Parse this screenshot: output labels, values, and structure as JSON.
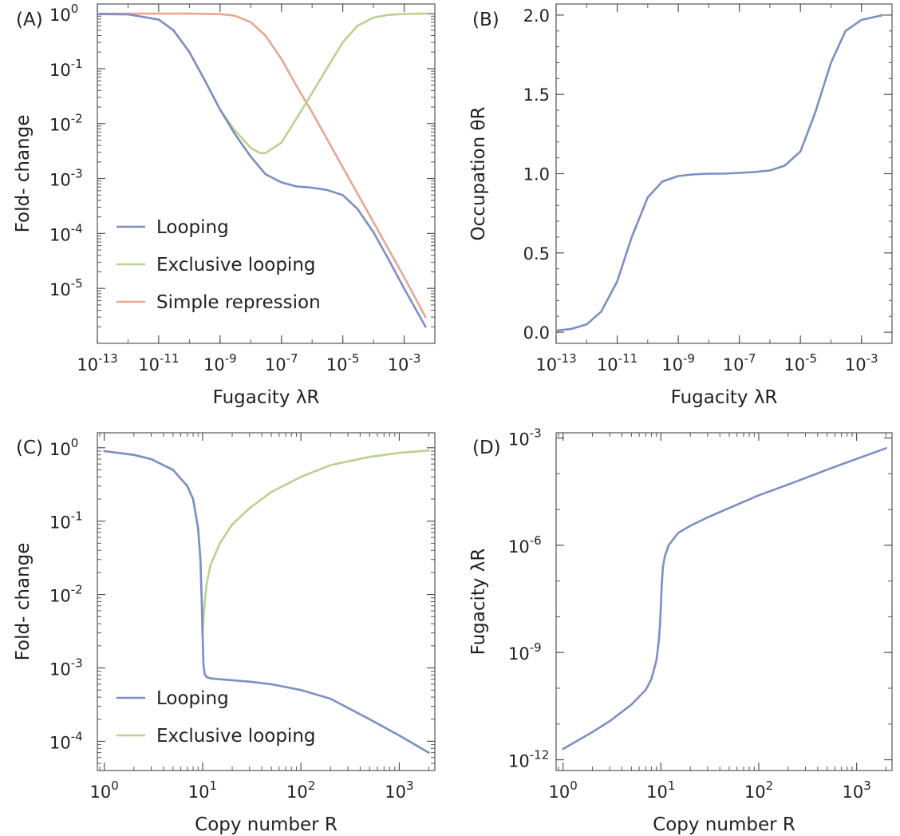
{
  "colors": {
    "looping": "#7b8fc4",
    "exclusive": "#b9d28d",
    "simple": "#e8a693",
    "frame": "#555555",
    "text": "#222222"
  },
  "chart_data": [
    {
      "panel_label": "(A)",
      "type": "line",
      "x_scale": "log",
      "y_scale": "log",
      "xlabel": "Fugacity λR",
      "ylabel": "Fold- change",
      "xlim": [
        1e-13,
        0.01
      ],
      "ylim": [
        1e-06,
        1.5
      ],
      "x_ticks": [
        {
          "value": 1e-13,
          "base": "10",
          "exp": "-13"
        },
        {
          "value": 1e-11,
          "base": "10",
          "exp": "-11"
        },
        {
          "value": 1e-09,
          "base": "10",
          "exp": "-9"
        },
        {
          "value": 1e-07,
          "base": "10",
          "exp": "-7"
        },
        {
          "value": 1e-05,
          "base": "10",
          "exp": "-5"
        },
        {
          "value": 0.001,
          "base": "10",
          "exp": "-3"
        }
      ],
      "y_ticks": [
        {
          "value": 1,
          "base": "10",
          "exp": "0"
        },
        {
          "value": 0.1,
          "base": "10",
          "exp": "-1"
        },
        {
          "value": 0.01,
          "base": "10",
          "exp": "-2"
        },
        {
          "value": 0.001,
          "base": "10",
          "exp": "-3"
        },
        {
          "value": 0.0001,
          "base": "10",
          "exp": "-4"
        },
        {
          "value": 1e-05,
          "base": "10",
          "exp": "-5"
        }
      ],
      "legend": [
        "Looping",
        "Exclusive looping",
        "Simple repression"
      ],
      "series": [
        {
          "name": "Looping",
          "color": "#7b8fc4",
          "x": [
            1e-13,
            1e-12,
            1e-11,
            3e-11,
            1e-10,
            3e-10,
            1e-09,
            3e-09,
            1e-08,
            3e-08,
            1e-07,
            3e-07,
            1e-06,
            3e-06,
            1e-05,
            3e-05,
            0.0001,
            0.0003,
            0.001,
            0.005
          ],
          "y": [
            0.98,
            0.97,
            0.78,
            0.5,
            0.2,
            0.065,
            0.018,
            0.0065,
            0.0025,
            0.0012,
            0.00085,
            0.00072,
            0.00068,
            0.00062,
            0.0005,
            0.00028,
            0.000105,
            3.5e-05,
            1e-05,
            2e-06
          ]
        },
        {
          "name": "Exclusive looping",
          "color": "#b9d28d",
          "x": [
            1e-13,
            1e-12,
            1e-11,
            3e-11,
            1e-10,
            3e-10,
            1e-09,
            3e-09,
            1e-08,
            2e-08,
            3e-08,
            1e-07,
            3e-07,
            1e-06,
            3e-06,
            1e-05,
            3e-05,
            0.0001,
            0.0003,
            0.001,
            0.005
          ],
          "y": [
            0.98,
            0.97,
            0.78,
            0.5,
            0.2,
            0.065,
            0.018,
            0.0075,
            0.0036,
            0.0029,
            0.0029,
            0.0045,
            0.012,
            0.036,
            0.1,
            0.3,
            0.6,
            0.85,
            0.95,
            0.99,
            1.0
          ]
        },
        {
          "name": "Simple repression",
          "color": "#e8a693",
          "x": [
            1e-13,
            1e-11,
            1e-10,
            1e-09,
            3e-09,
            1e-08,
            3e-08,
            1e-07,
            3e-07,
            1e-06,
            1e-05,
            0.0001,
            0.001,
            0.005
          ],
          "y": [
            1.0,
            1.0,
            1.0,
            0.98,
            0.92,
            0.7,
            0.4,
            0.15,
            0.05,
            0.016,
            0.0016,
            0.00016,
            1.6e-05,
            3e-06
          ]
        }
      ]
    },
    {
      "panel_label": "(B)",
      "type": "line",
      "x_scale": "log",
      "y_scale": "linear",
      "xlabel": "Fugacity λR",
      "ylabel": "Occupation θR",
      "xlim": [
        1e-13,
        0.01
      ],
      "ylim": [
        -0.07,
        2.07
      ],
      "x_ticks": [
        {
          "value": 1e-13,
          "base": "10",
          "exp": "-13"
        },
        {
          "value": 1e-11,
          "base": "10",
          "exp": "-11"
        },
        {
          "value": 1e-09,
          "base": "10",
          "exp": "-9"
        },
        {
          "value": 1e-07,
          "base": "10",
          "exp": "-7"
        },
        {
          "value": 1e-05,
          "base": "10",
          "exp": "-5"
        },
        {
          "value": 0.001,
          "base": "10",
          "exp": "-3"
        }
      ],
      "y_ticks": [
        {
          "value": 0.0,
          "label": "0.0"
        },
        {
          "value": 0.5,
          "label": "0.5"
        },
        {
          "value": 1.0,
          "label": "1.0"
        },
        {
          "value": 1.5,
          "label": "1.5"
        },
        {
          "value": 2.0,
          "label": "2.0"
        }
      ],
      "series": [
        {
          "name": "",
          "color": "#7b8fc4",
          "x": [
            1e-13,
            3e-13,
            1e-12,
            3e-12,
            1e-11,
            3e-11,
            1e-10,
            3e-10,
            1e-09,
            3e-09,
            1e-08,
            3e-08,
            1e-07,
            3e-07,
            1e-06,
            3e-06,
            1e-05,
            3e-05,
            0.0001,
            0.0003,
            0.001,
            0.003,
            0.005
          ],
          "y": [
            0.01,
            0.02,
            0.05,
            0.13,
            0.32,
            0.6,
            0.85,
            0.95,
            0.985,
            0.995,
            1.0,
            1.0,
            1.005,
            1.01,
            1.02,
            1.05,
            1.14,
            1.38,
            1.7,
            1.9,
            1.97,
            1.99,
            2.0
          ]
        }
      ]
    },
    {
      "panel_label": "(C)",
      "type": "line",
      "x_scale": "log",
      "y_scale": "log",
      "xlabel": "Copy number R",
      "ylabel": "Fold- change",
      "xlim": [
        0.85,
        2300
      ],
      "ylim": [
        4e-05,
        1.6
      ],
      "x_ticks": [
        {
          "value": 1,
          "base": "10",
          "exp": "0"
        },
        {
          "value": 10,
          "base": "10",
          "exp": "1"
        },
        {
          "value": 100,
          "base": "10",
          "exp": "2"
        },
        {
          "value": 1000,
          "base": "10",
          "exp": "3"
        }
      ],
      "y_ticks": [
        {
          "value": 1,
          "base": "10",
          "exp": "0"
        },
        {
          "value": 0.1,
          "base": "10",
          "exp": "-1"
        },
        {
          "value": 0.01,
          "base": "10",
          "exp": "-2"
        },
        {
          "value": 0.001,
          "base": "10",
          "exp": "-3"
        },
        {
          "value": 0.0001,
          "base": "10",
          "exp": "-4"
        }
      ],
      "legend": [
        "Looping",
        "Exclusive looping"
      ],
      "series": [
        {
          "name": "Looping",
          "color": "#7b8fc4",
          "x": [
            1,
            2,
            3,
            5,
            7,
            8,
            9,
            9.5,
            9.8,
            10,
            10.2,
            10.5,
            11,
            12,
            15,
            20,
            30,
            50,
            100,
            200,
            500,
            1000,
            2000
          ],
          "y": [
            0.9,
            0.8,
            0.7,
            0.5,
            0.3,
            0.2,
            0.08,
            0.03,
            0.008,
            0.0028,
            0.0011,
            0.00082,
            0.00075,
            0.00072,
            0.0007,
            0.00068,
            0.00065,
            0.0006,
            0.0005,
            0.00038,
            0.0002,
            0.00012,
            7e-05
          ]
        },
        {
          "name": "Exclusive looping",
          "color": "#b9d28d",
          "x": [
            1,
            2,
            3,
            5,
            7,
            8,
            9,
            9.5,
            9.8,
            10,
            10.2,
            10.5,
            11,
            12,
            15,
            20,
            30,
            50,
            100,
            200,
            500,
            1000,
            2000
          ],
          "y": [
            0.9,
            0.8,
            0.7,
            0.5,
            0.3,
            0.2,
            0.08,
            0.03,
            0.008,
            0.0028,
            0.0045,
            0.008,
            0.014,
            0.025,
            0.05,
            0.09,
            0.15,
            0.25,
            0.4,
            0.58,
            0.75,
            0.85,
            0.92
          ]
        }
      ]
    },
    {
      "panel_label": "(D)",
      "type": "line",
      "x_scale": "log",
      "y_scale": "log",
      "xlabel": "Copy number R",
      "ylabel": "Fugacity λR",
      "xlim": [
        0.85,
        2300
      ],
      "ylim": [
        5e-13,
        0.0014
      ],
      "x_ticks": [
        {
          "value": 1,
          "base": "10",
          "exp": "0"
        },
        {
          "value": 10,
          "base": "10",
          "exp": "1"
        },
        {
          "value": 100,
          "base": "10",
          "exp": "2"
        },
        {
          "value": 1000,
          "base": "10",
          "exp": "3"
        }
      ],
      "y_ticks": [
        {
          "value": 0.001,
          "base": "10",
          "exp": "-3"
        },
        {
          "value": 1e-06,
          "base": "10",
          "exp": "-6"
        },
        {
          "value": 1e-09,
          "base": "10",
          "exp": "-9"
        },
        {
          "value": 1e-12,
          "base": "10",
          "exp": "-12"
        }
      ],
      "series": [
        {
          "name": "",
          "color": "#7b8fc4",
          "x": [
            1,
            2,
            3,
            5,
            7,
            8,
            9,
            9.5,
            9.8,
            10,
            10.2,
            10.5,
            11,
            12,
            15,
            20,
            30,
            50,
            100,
            200,
            500,
            1000,
            2000
          ],
          "y": [
            2e-12,
            6e-12,
            1.2e-11,
            3.5e-11,
            9e-11,
            1.8e-10,
            6e-10,
            2e-09,
            6e-09,
            2e-08,
            8e-08,
            2.5e-07,
            5e-07,
            1e-06,
            2.2e-06,
            3.5e-06,
            6e-06,
            1.1e-05,
            2.5e-05,
            5e-05,
            0.00013,
            0.00026,
            0.00052
          ]
        }
      ]
    }
  ]
}
